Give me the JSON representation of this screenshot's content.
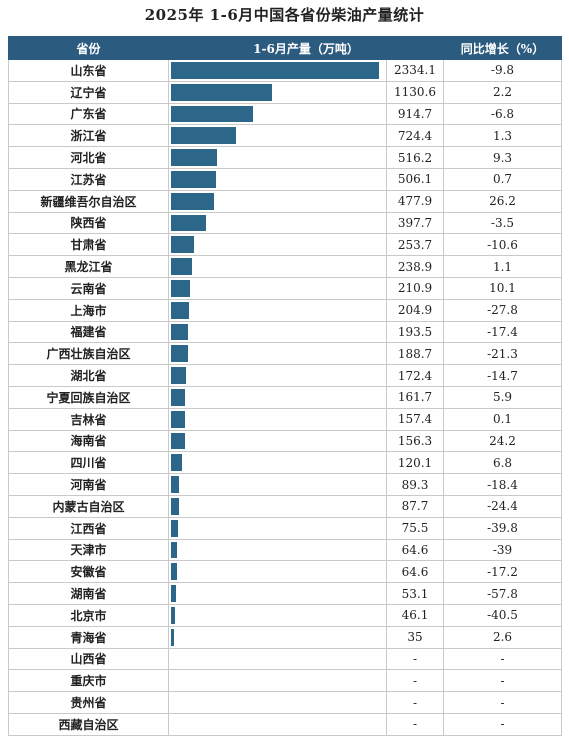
{
  "title": "2025年 1-6月中国各省份柴油产量统计",
  "headers": {
    "province": "省份",
    "production": "1-6月产量（万吨）",
    "growth": "同比增长（%）"
  },
  "colors": {
    "header_bg": "#2c5b80",
    "bar": "#2c6688"
  },
  "chart_data": {
    "type": "table",
    "bar_column": "production",
    "rows": [
      {
        "province": "山东省",
        "production": "2334.1",
        "growth": "-9.8"
      },
      {
        "province": "辽宁省",
        "production": "1130.6",
        "growth": "2.2"
      },
      {
        "province": "广东省",
        "production": "914.7",
        "growth": "-6.8"
      },
      {
        "province": "浙江省",
        "production": "724.4",
        "growth": "1.3"
      },
      {
        "province": "河北省",
        "production": "516.2",
        "growth": "9.3"
      },
      {
        "province": "江苏省",
        "production": "506.1",
        "growth": "0.7"
      },
      {
        "province": "新疆维吾尔自治区",
        "production": "477.9",
        "growth": "26.2"
      },
      {
        "province": "陕西省",
        "production": "397.7",
        "growth": "-3.5"
      },
      {
        "province": "甘肃省",
        "production": "253.7",
        "growth": "-10.6"
      },
      {
        "province": "黑龙江省",
        "production": "238.9",
        "growth": "1.1"
      },
      {
        "province": "云南省",
        "production": "210.9",
        "growth": "10.1"
      },
      {
        "province": "上海市",
        "production": "204.9",
        "growth": "-27.8"
      },
      {
        "province": "福建省",
        "production": "193.5",
        "growth": "-17.4"
      },
      {
        "province": "广西壮族自治区",
        "production": "188.7",
        "growth": "-21.3"
      },
      {
        "province": "湖北省",
        "production": "172.4",
        "growth": "-14.7"
      },
      {
        "province": "宁夏回族自治区",
        "production": "161.7",
        "growth": "5.9"
      },
      {
        "province": "吉林省",
        "production": "157.4",
        "growth": "0.1"
      },
      {
        "province": "海南省",
        "production": "156.3",
        "growth": "24.2"
      },
      {
        "province": "四川省",
        "production": "120.1",
        "growth": "6.8"
      },
      {
        "province": "河南省",
        "production": "89.3",
        "growth": "-18.4"
      },
      {
        "province": "内蒙古自治区",
        "production": "87.7",
        "growth": "-24.4"
      },
      {
        "province": "江西省",
        "production": "75.5",
        "growth": "-39.8"
      },
      {
        "province": "天津市",
        "production": "64.6",
        "growth": "-39"
      },
      {
        "province": "安徽省",
        "production": "64.6",
        "growth": "-17.2"
      },
      {
        "province": "湖南省",
        "production": "53.1",
        "growth": "-57.8"
      },
      {
        "province": "北京市",
        "production": "46.1",
        "growth": "-40.5"
      },
      {
        "province": "青海省",
        "production": "35",
        "growth": "2.6"
      },
      {
        "province": "山西省",
        "production": "-",
        "growth": "-"
      },
      {
        "province": "重庆市",
        "production": "-",
        "growth": "-"
      },
      {
        "province": "贵州省",
        "production": "-",
        "growth": "-"
      },
      {
        "province": "西藏自治区",
        "production": "-",
        "growth": "-"
      }
    ]
  }
}
